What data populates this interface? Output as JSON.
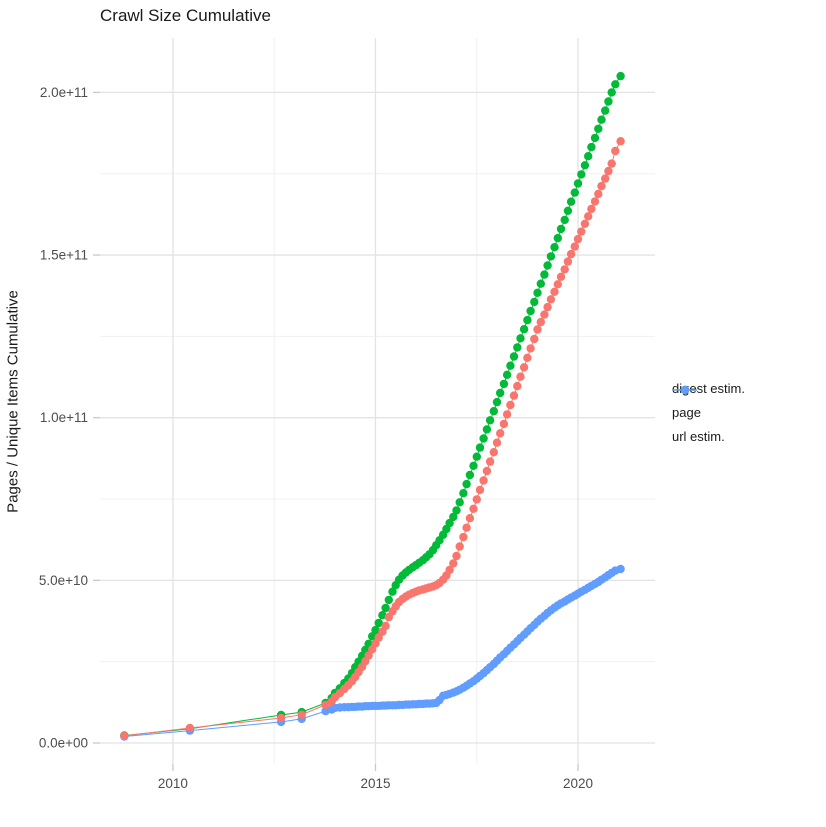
{
  "title": "Crawl Size Cumulative",
  "legend": {
    "items": [
      {
        "label": "digest estim.",
        "color": "#F8766D"
      },
      {
        "label": "page",
        "color": "#00BA38"
      },
      {
        "label": "url estim.",
        "color": "#619CFF"
      }
    ]
  },
  "colors": {
    "background": "#ffffff",
    "grid_major": "#e3e3e3",
    "grid_minor": "#f0f0f0",
    "tick_mark": "#c9c9c9",
    "tick_label": "#4d4d4d",
    "text": "#1a1a1a"
  },
  "chart_data": {
    "type": "scatter",
    "title": "Crawl Size Cumulative",
    "xlabel": "",
    "ylabel": "Pages / Unique Items Cumulative",
    "grid": true,
    "legend_position": "right",
    "xlim": [
      2008.2,
      2021.9
    ],
    "ylim_e9": [
      -8,
      215
    ],
    "x_tick_values": [
      2010,
      2015,
      2020
    ],
    "x_tick_labels": [
      "2010",
      "2015",
      "2020"
    ],
    "x_minor_values": [
      2012.5,
      2017.5
    ],
    "y_tick_values_e9": [
      0,
      50,
      100,
      150,
      200
    ],
    "y_tick_labels": [
      "0.0e+00",
      "5.0e+10",
      "1.0e+11",
      "1.5e+11",
      "2.0e+11"
    ],
    "y_minor_values_e9": [
      25,
      75,
      125,
      175
    ],
    "units": "y values in billions (1e9)",
    "draw_order": [
      "page",
      "url estim.",
      "digest estim."
    ],
    "series": [
      {
        "name": "digest estim.",
        "color": "#F8766D",
        "points": [
          [
            2008.8,
            2.2
          ],
          [
            2010.42,
            4.6
          ],
          [
            2012.67,
            7.7
          ],
          [
            2013.18,
            8.7
          ],
          [
            2013.77,
            11.7
          ],
          [
            2013.92,
            12.8
          ],
          [
            2014.0,
            14.1
          ],
          [
            2014.12,
            15.3
          ],
          [
            2014.23,
            16.6
          ],
          [
            2014.33,
            17.8
          ],
          [
            2014.42,
            19.0
          ],
          [
            2014.5,
            20.3
          ],
          [
            2014.58,
            21.8
          ],
          [
            2014.67,
            23.4
          ],
          [
            2014.75,
            25.1
          ],
          [
            2014.83,
            26.9
          ],
          [
            2014.92,
            28.8
          ],
          [
            2015.0,
            30.6
          ],
          [
            2015.08,
            32.4
          ],
          [
            2015.17,
            34.2
          ],
          [
            2015.25,
            36.0
          ],
          [
            2015.33,
            38.7
          ],
          [
            2015.42,
            40.5
          ],
          [
            2015.5,
            42.0
          ],
          [
            2015.58,
            43.3
          ],
          [
            2015.67,
            44.3
          ],
          [
            2015.75,
            45.0
          ],
          [
            2015.83,
            45.6
          ],
          [
            2015.92,
            46.1
          ],
          [
            2016.0,
            46.5
          ],
          [
            2016.08,
            46.9
          ],
          [
            2016.17,
            47.2
          ],
          [
            2016.25,
            47.5
          ],
          [
            2016.33,
            47.8
          ],
          [
            2016.42,
            48.1
          ],
          [
            2016.5,
            48.5
          ],
          [
            2016.58,
            49.2
          ],
          [
            2016.67,
            50.2
          ],
          [
            2016.75,
            51.5
          ],
          [
            2016.83,
            53.2
          ],
          [
            2016.92,
            55.2
          ],
          [
            2017.0,
            57.5
          ],
          [
            2017.08,
            60.4
          ],
          [
            2017.17,
            63.3
          ],
          [
            2017.25,
            66.2
          ],
          [
            2017.33,
            69.1
          ],
          [
            2017.42,
            72.0
          ],
          [
            2017.5,
            74.9
          ],
          [
            2017.58,
            77.8
          ],
          [
            2017.67,
            80.7
          ],
          [
            2017.75,
            83.6
          ],
          [
            2017.83,
            86.5
          ],
          [
            2017.92,
            89.4
          ],
          [
            2018.0,
            92.3
          ],
          [
            2018.08,
            95.2
          ],
          [
            2018.17,
            98.1
          ],
          [
            2018.25,
            101.0
          ],
          [
            2018.33,
            103.9
          ],
          [
            2018.42,
            106.8
          ],
          [
            2018.5,
            109.7
          ],
          [
            2018.58,
            112.6
          ],
          [
            2018.67,
            115.5
          ],
          [
            2018.75,
            118.4
          ],
          [
            2018.83,
            121.3
          ],
          [
            2018.92,
            124.2
          ],
          [
            2019.0,
            127.1
          ],
          [
            2019.08,
            129.4
          ],
          [
            2019.17,
            131.7
          ],
          [
            2019.25,
            134.0
          ],
          [
            2019.33,
            136.4
          ],
          [
            2019.42,
            138.7
          ],
          [
            2019.5,
            141.0
          ],
          [
            2019.58,
            143.3
          ],
          [
            2019.67,
            145.6
          ],
          [
            2019.75,
            148.0
          ],
          [
            2019.83,
            150.3
          ],
          [
            2019.92,
            152.6
          ],
          [
            2020.0,
            154.9
          ],
          [
            2020.08,
            157.2
          ],
          [
            2020.17,
            159.6
          ],
          [
            2020.25,
            161.9
          ],
          [
            2020.33,
            164.2
          ],
          [
            2020.42,
            166.5
          ],
          [
            2020.5,
            168.8
          ],
          [
            2020.58,
            171.2
          ],
          [
            2020.67,
            173.5
          ],
          [
            2020.75,
            175.8
          ],
          [
            2020.83,
            178.1
          ],
          [
            2020.92,
            182.0
          ],
          [
            2021.05,
            185.0
          ]
        ]
      },
      {
        "name": "page",
        "color": "#00BA38",
        "points": [
          [
            2008.8,
            2.3
          ],
          [
            2010.42,
            4.4
          ],
          [
            2012.67,
            8.6
          ],
          [
            2013.18,
            9.5
          ],
          [
            2013.77,
            12.3
          ],
          [
            2013.92,
            13.8
          ],
          [
            2014.0,
            15.4
          ],
          [
            2014.12,
            16.8
          ],
          [
            2014.23,
            18.4
          ],
          [
            2014.33,
            19.8
          ],
          [
            2014.42,
            21.5
          ],
          [
            2014.5,
            23.3
          ],
          [
            2014.58,
            25.0
          ],
          [
            2014.67,
            26.8
          ],
          [
            2014.75,
            28.6
          ],
          [
            2014.83,
            30.5
          ],
          [
            2014.92,
            32.8
          ],
          [
            2015.0,
            34.7
          ],
          [
            2015.08,
            36.9
          ],
          [
            2015.17,
            39.3
          ],
          [
            2015.25,
            41.5
          ],
          [
            2015.33,
            44.0
          ],
          [
            2015.42,
            46.5
          ],
          [
            2015.5,
            48.5
          ],
          [
            2015.58,
            50.2
          ],
          [
            2015.67,
            51.5
          ],
          [
            2015.75,
            52.4
          ],
          [
            2015.83,
            53.2
          ],
          [
            2015.92,
            54.0
          ],
          [
            2016.0,
            54.7
          ],
          [
            2016.08,
            55.4
          ],
          [
            2016.17,
            56.2
          ],
          [
            2016.25,
            57.1
          ],
          [
            2016.33,
            58.0
          ],
          [
            2016.42,
            59.3
          ],
          [
            2016.5,
            60.8
          ],
          [
            2016.58,
            62.3
          ],
          [
            2016.67,
            64.0
          ],
          [
            2016.75,
            65.8
          ],
          [
            2016.83,
            67.6
          ],
          [
            2016.92,
            69.5
          ],
          [
            2017.0,
            71.5
          ],
          [
            2017.08,
            74.0
          ],
          [
            2017.17,
            76.8
          ],
          [
            2017.25,
            79.6
          ],
          [
            2017.33,
            82.4
          ],
          [
            2017.42,
            85.2
          ],
          [
            2017.5,
            88.0
          ],
          [
            2017.58,
            90.8
          ],
          [
            2017.67,
            93.6
          ],
          [
            2017.75,
            96.4
          ],
          [
            2017.83,
            99.2
          ],
          [
            2017.92,
            102.0
          ],
          [
            2018.0,
            104.8
          ],
          [
            2018.08,
            107.6
          ],
          [
            2018.17,
            110.4
          ],
          [
            2018.25,
            113.2
          ],
          [
            2018.33,
            116.0
          ],
          [
            2018.42,
            118.8
          ],
          [
            2018.5,
            121.6
          ],
          [
            2018.58,
            124.4
          ],
          [
            2018.67,
            127.2
          ],
          [
            2018.75,
            130.0
          ],
          [
            2018.83,
            132.8
          ],
          [
            2018.92,
            135.6
          ],
          [
            2019.0,
            138.4
          ],
          [
            2019.08,
            141.2
          ],
          [
            2019.17,
            144.0
          ],
          [
            2019.25,
            146.8
          ],
          [
            2019.33,
            149.6
          ],
          [
            2019.42,
            152.4
          ],
          [
            2019.5,
            155.2
          ],
          [
            2019.58,
            158.0
          ],
          [
            2019.67,
            160.8
          ],
          [
            2019.75,
            163.6
          ],
          [
            2019.83,
            166.4
          ],
          [
            2019.92,
            169.2
          ],
          [
            2020.0,
            172.0
          ],
          [
            2020.08,
            174.8
          ],
          [
            2020.17,
            177.6
          ],
          [
            2020.25,
            180.4
          ],
          [
            2020.33,
            183.2
          ],
          [
            2020.42,
            186.0
          ],
          [
            2020.5,
            188.8
          ],
          [
            2020.58,
            191.6
          ],
          [
            2020.67,
            194.4
          ],
          [
            2020.75,
            197.2
          ],
          [
            2020.83,
            200.0
          ],
          [
            2020.92,
            202.5
          ],
          [
            2021.05,
            205.0
          ]
        ]
      },
      {
        "name": "url estim.",
        "color": "#619CFF",
        "points": [
          [
            2008.8,
            2.0
          ],
          [
            2010.42,
            3.8
          ],
          [
            2012.67,
            6.5
          ],
          [
            2013.18,
            7.4
          ],
          [
            2013.77,
            9.8
          ],
          [
            2013.92,
            10.3
          ],
          [
            2014.0,
            10.8
          ],
          [
            2014.12,
            10.9
          ],
          [
            2014.23,
            11.0
          ],
          [
            2014.33,
            11.0
          ],
          [
            2014.42,
            11.1
          ],
          [
            2014.5,
            11.1
          ],
          [
            2014.58,
            11.2
          ],
          [
            2014.67,
            11.2
          ],
          [
            2014.75,
            11.3
          ],
          [
            2014.83,
            11.3
          ],
          [
            2014.92,
            11.4
          ],
          [
            2015.0,
            11.4
          ],
          [
            2015.08,
            11.4
          ],
          [
            2015.17,
            11.5
          ],
          [
            2015.25,
            11.5
          ],
          [
            2015.33,
            11.6
          ],
          [
            2015.42,
            11.6
          ],
          [
            2015.5,
            11.6
          ],
          [
            2015.58,
            11.7
          ],
          [
            2015.67,
            11.7
          ],
          [
            2015.75,
            11.8
          ],
          [
            2015.83,
            11.8
          ],
          [
            2015.92,
            11.9
          ],
          [
            2016.0,
            11.9
          ],
          [
            2016.08,
            12.0
          ],
          [
            2016.17,
            12.0
          ],
          [
            2016.25,
            12.1
          ],
          [
            2016.33,
            12.1
          ],
          [
            2016.42,
            12.2
          ],
          [
            2016.5,
            12.3
          ],
          [
            2016.58,
            13.2
          ],
          [
            2016.67,
            14.5
          ],
          [
            2016.75,
            14.8
          ],
          [
            2016.83,
            15.1
          ],
          [
            2016.92,
            15.5
          ],
          [
            2017.0,
            15.9
          ],
          [
            2017.08,
            16.4
          ],
          [
            2017.17,
            17.0
          ],
          [
            2017.25,
            17.6
          ],
          [
            2017.33,
            18.3
          ],
          [
            2017.42,
            19.0
          ],
          [
            2017.5,
            19.8
          ],
          [
            2017.58,
            20.6
          ],
          [
            2017.67,
            21.5
          ],
          [
            2017.75,
            22.4
          ],
          [
            2017.83,
            23.3
          ],
          [
            2017.92,
            24.3
          ],
          [
            2018.0,
            25.3
          ],
          [
            2018.08,
            26.3
          ],
          [
            2018.17,
            27.3
          ],
          [
            2018.25,
            28.3
          ],
          [
            2018.33,
            29.3
          ],
          [
            2018.42,
            30.3
          ],
          [
            2018.5,
            31.3
          ],
          [
            2018.58,
            32.3
          ],
          [
            2018.67,
            33.3
          ],
          [
            2018.75,
            34.3
          ],
          [
            2018.83,
            35.3
          ],
          [
            2018.92,
            36.3
          ],
          [
            2019.0,
            37.3
          ],
          [
            2019.08,
            38.2
          ],
          [
            2019.17,
            39.1
          ],
          [
            2019.25,
            40.0
          ],
          [
            2019.33,
            40.8
          ],
          [
            2019.42,
            41.6
          ],
          [
            2019.5,
            42.3
          ],
          [
            2019.58,
            42.9
          ],
          [
            2019.67,
            43.5
          ],
          [
            2019.75,
            44.1
          ],
          [
            2019.83,
            44.7
          ],
          [
            2019.92,
            45.3
          ],
          [
            2020.0,
            45.9
          ],
          [
            2020.08,
            46.5
          ],
          [
            2020.17,
            47.1
          ],
          [
            2020.25,
            47.7
          ],
          [
            2020.33,
            48.3
          ],
          [
            2020.42,
            48.9
          ],
          [
            2020.5,
            49.5
          ],
          [
            2020.58,
            50.2
          ],
          [
            2020.67,
            50.9
          ],
          [
            2020.75,
            51.6
          ],
          [
            2020.83,
            52.3
          ],
          [
            2020.92,
            53.0
          ],
          [
            2021.05,
            53.5
          ]
        ]
      }
    ]
  }
}
